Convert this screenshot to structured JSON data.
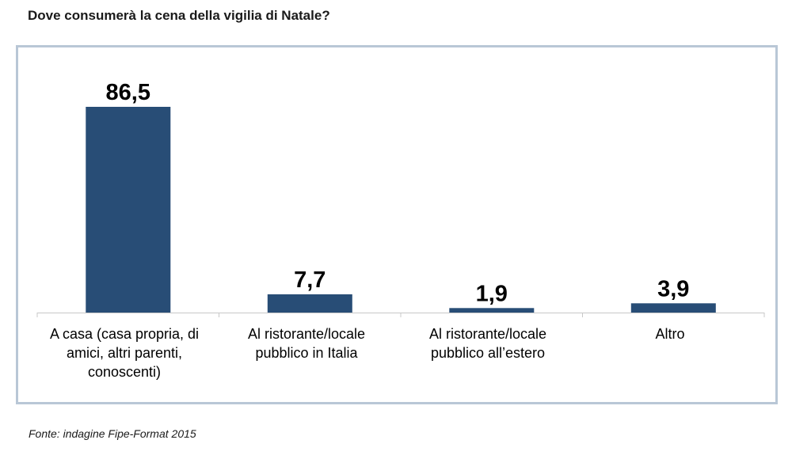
{
  "header": {
    "title": "Dove consumerà la cena della vigilia di Natale?"
  },
  "footer": {
    "source": "Fonte: indagine Fipe-Format 2015"
  },
  "colors": {
    "bar": "#284d76",
    "axis": "#c8c8c8",
    "frame": "#b9c7d6"
  },
  "chart_data": {
    "type": "bar",
    "title": "Dove consumerà la cena della vigilia di Natale?",
    "categories": [
      "A casa (casa propria, di\namici, altri parenti,\nconoscenti)",
      "Al ristorante/locale\npubblico in Italia",
      "Al ristorante/locale\npubblico all’estero",
      "Altro"
    ],
    "values": [
      86.5,
      7.7,
      1.9,
      3.9
    ],
    "value_labels": [
      "86,5",
      "7,7",
      "1,9",
      "3,9"
    ],
    "xlabel": "",
    "ylabel": "",
    "ylim": [
      0,
      100
    ],
    "grid": false,
    "legend": "none"
  }
}
